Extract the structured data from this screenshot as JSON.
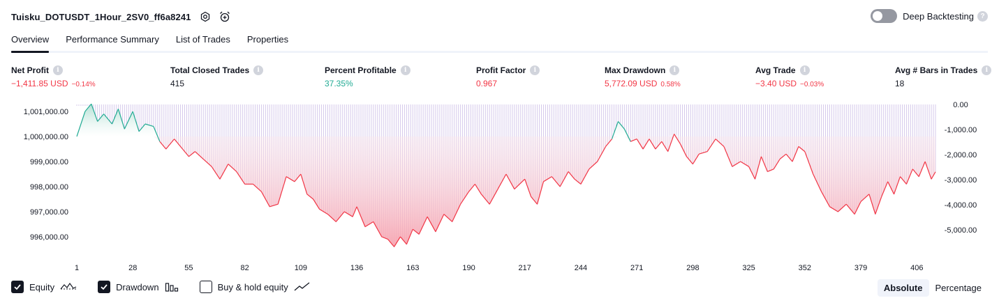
{
  "header": {
    "strategy_name": "Tuisku_DOTUSDT_1Hour_2SV0_ff6a8241",
    "settings_icon": "gear-icon",
    "alert_icon": "alarm-clock-plus-icon",
    "deep_backtesting_label": "Deep Backtesting",
    "deep_backtesting_enabled": false,
    "help_icon": "question-icon"
  },
  "tabs": [
    {
      "label": "Overview",
      "active": true
    },
    {
      "label": "Performance Summary",
      "active": false
    },
    {
      "label": "List of Trades",
      "active": false
    },
    {
      "label": "Properties",
      "active": false
    }
  ],
  "stats": [
    {
      "label": "Net Profit",
      "value": "−1,411.85 USD",
      "pct": "−0.14%",
      "color": "#f23645"
    },
    {
      "label": "Total Closed Trades",
      "value": "415",
      "pct": "",
      "color": "#131722"
    },
    {
      "label": "Percent Profitable",
      "value": "37.35%",
      "pct": "",
      "color": "#22ab94"
    },
    {
      "label": "Profit Factor",
      "value": "0.967",
      "pct": "",
      "color": "#f23645"
    },
    {
      "label": "Max Drawdown",
      "value": "5,772.09 USD",
      "pct": "0.58%",
      "color": "#f23645"
    },
    {
      "label": "Avg Trade",
      "value": "−3.40 USD",
      "pct": "−0.03%",
      "color": "#f23645"
    },
    {
      "label": "Avg # Bars in Trades",
      "value": "18",
      "pct": "",
      "color": "#131722"
    }
  ],
  "legend": {
    "equity": {
      "label": "Equity",
      "checked": true,
      "icon": "equity-line-icon"
    },
    "drawdown": {
      "label": "Drawdown",
      "checked": true,
      "icon": "bars-icon"
    },
    "buy_hold": {
      "label": "Buy & hold equity",
      "checked": false,
      "icon": "trend-line-icon"
    }
  },
  "mode": {
    "absolute_label": "Absolute",
    "percentage_label": "Percentage",
    "active": "Absolute"
  },
  "colors": {
    "positive": "#22ab94",
    "negative": "#f23645",
    "drawdown_bars": "#b39ddb",
    "text": "#131722"
  },
  "chart_data": {
    "type": "area",
    "left_axis": {
      "ticks": [
        "1,001,000.00",
        "1,000,000.00",
        "999,000.00",
        "998,000.00",
        "997,000.00",
        "996,000.00"
      ],
      "range": [
        995400,
        1001300
      ]
    },
    "right_axis": {
      "ticks": [
        "0.00",
        "-1,000.00",
        "-2,000.00",
        "-3,000.00",
        "-4,000.00",
        "-5,000.00"
      ],
      "range": [
        -5772.09,
        0
      ]
    },
    "x_ticks": [
      "1",
      "28",
      "55",
      "82",
      "109",
      "136",
      "163",
      "190",
      "217",
      "244",
      "271",
      "298",
      "325",
      "352",
      "379",
      "406"
    ],
    "x_range": [
      1,
      415
    ],
    "baseline": 1000000,
    "equity": [
      [
        1,
        1000000
      ],
      [
        5,
        1001000
      ],
      [
        8,
        1001300
      ],
      [
        11,
        1000600
      ],
      [
        14,
        1000900
      ],
      [
        18,
        1000500
      ],
      [
        21,
        1001100
      ],
      [
        24,
        1000300
      ],
      [
        28,
        1001000
      ],
      [
        31,
        1000200
      ],
      [
        34,
        1000500
      ],
      [
        38,
        1000400
      ],
      [
        41,
        999800
      ],
      [
        44,
        999500
      ],
      [
        48,
        999900
      ],
      [
        52,
        999500
      ],
      [
        55,
        999200
      ],
      [
        58,
        999400
      ],
      [
        62,
        999100
      ],
      [
        66,
        998800
      ],
      [
        70,
        998300
      ],
      [
        74,
        998900
      ],
      [
        78,
        998600
      ],
      [
        82,
        998100
      ],
      [
        86,
        998100
      ],
      [
        90,
        997800
      ],
      [
        94,
        997200
      ],
      [
        98,
        997300
      ],
      [
        102,
        998400
      ],
      [
        106,
        998200
      ],
      [
        109,
        998500
      ],
      [
        112,
        997700
      ],
      [
        115,
        997500
      ],
      [
        118,
        997100
      ],
      [
        122,
        996900
      ],
      [
        126,
        996600
      ],
      [
        130,
        997000
      ],
      [
        134,
        996800
      ],
      [
        136,
        997200
      ],
      [
        140,
        996400
      ],
      [
        144,
        996600
      ],
      [
        148,
        996000
      ],
      [
        151,
        995900
      ],
      [
        154,
        995600
      ],
      [
        157,
        996000
      ],
      [
        160,
        995700
      ],
      [
        163,
        996300
      ],
      [
        166,
        996100
      ],
      [
        170,
        996800
      ],
      [
        174,
        996200
      ],
      [
        178,
        996900
      ],
      [
        182,
        996600
      ],
      [
        186,
        997300
      ],
      [
        190,
        997800
      ],
      [
        193,
        998100
      ],
      [
        196,
        997700
      ],
      [
        200,
        997300
      ],
      [
        204,
        997900
      ],
      [
        208,
        998500
      ],
      [
        212,
        997900
      ],
      [
        217,
        998300
      ],
      [
        220,
        997600
      ],
      [
        223,
        997300
      ],
      [
        226,
        998200
      ],
      [
        230,
        998400
      ],
      [
        234,
        998000
      ],
      [
        238,
        998600
      ],
      [
        241,
        998300
      ],
      [
        244,
        998100
      ],
      [
        248,
        998700
      ],
      [
        252,
        999000
      ],
      [
        256,
        999600
      ],
      [
        259,
        999900
      ],
      [
        262,
        1000600
      ],
      [
        265,
        1000300
      ],
      [
        268,
        999800
      ],
      [
        271,
        999900
      ],
      [
        274,
        999500
      ],
      [
        277,
        999900
      ],
      [
        280,
        999500
      ],
      [
        283,
        999800
      ],
      [
        286,
        999400
      ],
      [
        289,
        1000100
      ],
      [
        292,
        999700
      ],
      [
        295,
        999200
      ],
      [
        298,
        998900
      ],
      [
        301,
        999300
      ],
      [
        305,
        999400
      ],
      [
        309,
        999900
      ],
      [
        313,
        999600
      ],
      [
        317,
        998800
      ],
      [
        321,
        999000
      ],
      [
        325,
        998800
      ],
      [
        328,
        998300
      ],
      [
        331,
        999200
      ],
      [
        334,
        998600
      ],
      [
        337,
        998700
      ],
      [
        340,
        999100
      ],
      [
        343,
        999300
      ],
      [
        346,
        999000
      ],
      [
        349,
        999600
      ],
      [
        352,
        999400
      ],
      [
        356,
        998500
      ],
      [
        360,
        997800
      ],
      [
        364,
        997200
      ],
      [
        368,
        997000
      ],
      [
        372,
        997300
      ],
      [
        376,
        996900
      ],
      [
        379,
        997400
      ],
      [
        383,
        997700
      ],
      [
        386,
        996900
      ],
      [
        389,
        997600
      ],
      [
        392,
        998200
      ],
      [
        395,
        997700
      ],
      [
        398,
        998400
      ],
      [
        401,
        998100
      ],
      [
        404,
        998700
      ],
      [
        407,
        998400
      ],
      [
        410,
        999000
      ],
      [
        413,
        998300
      ],
      [
        415,
        998588
      ]
    ]
  }
}
